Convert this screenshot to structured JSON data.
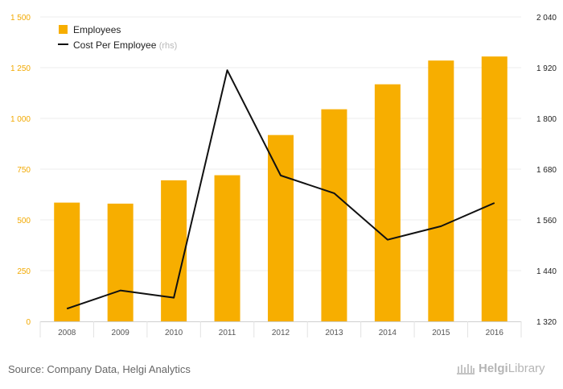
{
  "chart_data": {
    "type": "bar",
    "categories": [
      "2008",
      "2009",
      "2010",
      "2011",
      "2012",
      "2013",
      "2014",
      "2015",
      "2016"
    ],
    "series": [
      {
        "name": "Employees",
        "type": "bar",
        "axis": "left",
        "color": "#f7ae00",
        "values": [
          585,
          580,
          695,
          720,
          918,
          1045,
          1168,
          1285,
          1305
        ]
      },
      {
        "name": "Cost Per Employee",
        "suffix": "(rhs)",
        "type": "line",
        "axis": "right",
        "color": "#111111",
        "values": [
          1350,
          1393,
          1376,
          1914,
          1665,
          1623,
          1513,
          1545,
          1600
        ]
      }
    ],
    "yaxis_left": {
      "range": [
        0,
        1500
      ],
      "ticks": [
        0,
        250,
        500,
        750,
        1000,
        1250,
        1500
      ],
      "tick_labels": [
        "0",
        "250",
        "500",
        "750",
        "1 000",
        "1 250",
        "1 500"
      ],
      "color": "#f2a900"
    },
    "yaxis_right": {
      "range": [
        1320,
        2040
      ],
      "ticks": [
        1320,
        1440,
        1560,
        1680,
        1800,
        1920,
        2040
      ],
      "tick_labels": [
        "1 320",
        "1 440",
        "1 560",
        "1 680",
        "1 800",
        "1 920",
        "2 040"
      ],
      "color": "#222222"
    },
    "grid": true,
    "legend_position": "top-left",
    "title": "",
    "xlabel": "",
    "ylabel": ""
  },
  "footer": {
    "source": "Source: Company Data, Helgi Analytics",
    "brand_part1": "Helgi",
    "brand_part2": "Library"
  }
}
